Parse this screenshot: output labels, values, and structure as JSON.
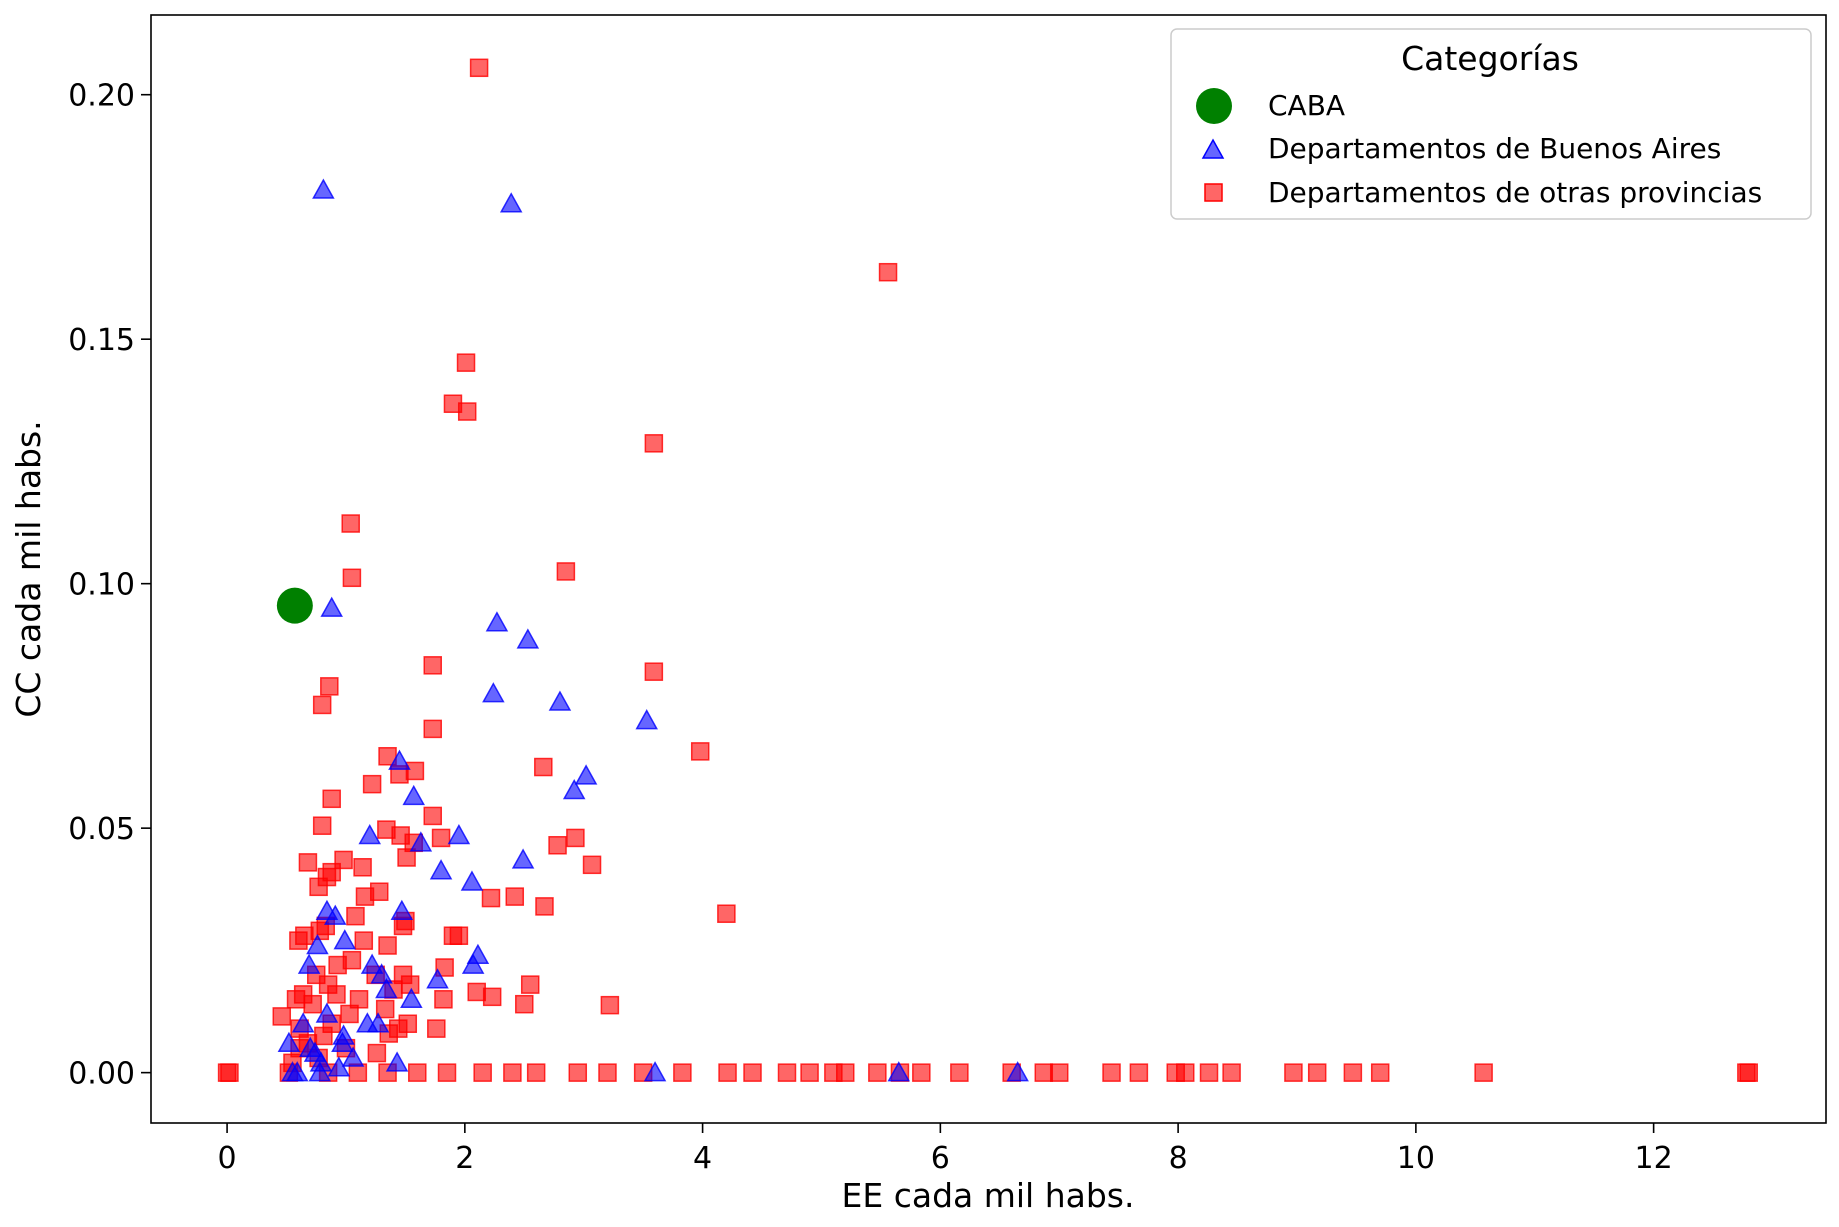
{
  "chart_data": {
    "type": "scatter",
    "xlabel": "EE cada mil habs.",
    "ylabel": "CC cada mil habs.",
    "xlim": [
      -0.64,
      13.45
    ],
    "ylim": [
      -0.0103,
      0.2163
    ],
    "xticks": [
      "0",
      "2",
      "4",
      "6",
      "8",
      "10",
      "12"
    ],
    "xtick_values": [
      0,
      2,
      4,
      6,
      8,
      10,
      12
    ],
    "yticks": [
      "0.00",
      "0.05",
      "0.10",
      "0.15",
      "0.20"
    ],
    "ytick_values": [
      0,
      0.05,
      0.1,
      0.15,
      0.2
    ],
    "grid": false,
    "legend": {
      "title": "Categorías",
      "placement": "top-right"
    },
    "series": [
      {
        "name": "CABA",
        "marker": "circle",
        "color": "#008000",
        "x": [
          0.57
        ],
        "y": [
          0.0955
        ]
      },
      {
        "name": "Departamentos de Buenos Aires",
        "marker": "triangle",
        "color": "#0000ff",
        "x": [
          0.81,
          2.39,
          0.88,
          2.27,
          2.53,
          2.24,
          2.8,
          3.53,
          3.02,
          2.92,
          1.45,
          1.57,
          1.2,
          1.63,
          1.95,
          2.49,
          1.8,
          2.06,
          0.84,
          0.91,
          1.47,
          0.99,
          0.76,
          1.22,
          2.11,
          2.07,
          1.77,
          0.69,
          1.3,
          1.34,
          1.55,
          1.27,
          0.64,
          0.84,
          1.18,
          0.98,
          0.97,
          0.52,
          0.7,
          0.74,
          1.06,
          1.43,
          0.94,
          0.79,
          0.59,
          0.78,
          5.65,
          6.65,
          3.6,
          0.55
        ],
        "y": [
          0.1805,
          0.1777,
          0.095,
          0.092,
          0.0885,
          0.0775,
          0.0758,
          0.072,
          0.0607,
          0.0577,
          0.0637,
          0.0565,
          0.0485,
          0.047,
          0.0485,
          0.0435,
          0.0413,
          0.039,
          0.033,
          0.032,
          0.033,
          0.027,
          0.026,
          0.022,
          0.024,
          0.022,
          0.019,
          0.022,
          0.02,
          0.017,
          0.015,
          0.01,
          0.01,
          0.012,
          0.01,
          0.0075,
          0.006,
          0.006,
          0.005,
          0.004,
          0.003,
          0.002,
          0.001,
          0.002,
          0.0,
          0.0,
          0.0,
          0.0,
          0.0,
          0.0
        ]
      },
      {
        "name": "Departamentos de otras provincias",
        "marker": "square",
        "color": "#ff0000",
        "x": [
          2.12,
          5.56,
          2.01,
          1.9,
          2.02,
          3.59,
          1.04,
          1.05,
          2.85,
          1.73,
          3.59,
          0.86,
          0.8,
          1.73,
          3.98,
          1.35,
          1.45,
          1.58,
          2.66,
          1.22,
          0.88,
          1.73,
          0.8,
          1.46,
          1.34,
          1.57,
          1.8,
          2.93,
          2.78,
          0.68,
          1.51,
          0.98,
          3.07,
          0.88,
          1.14,
          0.84,
          2.22,
          2.42,
          1.28,
          0.77,
          1.16,
          2.67,
          4.2,
          1.08,
          1.5,
          1.35,
          0.83,
          1.48,
          0.6,
          0.78,
          0.65,
          1.9,
          1.95,
          1.05,
          1.15,
          1.83,
          0.93,
          2.1,
          1.48,
          0.75,
          1.25,
          2.55,
          1.54,
          0.85,
          0.92,
          1.4,
          0.64,
          2.23,
          0.58,
          1.82,
          1.11,
          2.5,
          0.72,
          3.22,
          0.46,
          1.33,
          1.03,
          1.52,
          0.88,
          0.61,
          1.76,
          1.44,
          0.81,
          1.36,
          0.68,
          1.0,
          0.61,
          1.26,
          0.77,
          0.55,
          0.52,
          12.8,
          12.78,
          10.57,
          9.7,
          9.47,
          9.17,
          8.97,
          8.45,
          8.26,
          8.06,
          7.98,
          7.67,
          7.44,
          7.0,
          6.87,
          6.6,
          6.16,
          5.84,
          5.66,
          5.47,
          5.2,
          5.1,
          4.9,
          4.71,
          4.42,
          4.21,
          3.83,
          3.5,
          3.2,
          2.95,
          2.6,
          2.4,
          2.15,
          1.85,
          1.6,
          1.35,
          1.1,
          0.85,
          0.0,
          0.02
        ],
        "y": [
          0.2055,
          0.1637,
          0.1452,
          0.1368,
          0.1352,
          0.1287,
          0.1123,
          0.1012,
          0.1025,
          0.0833,
          0.082,
          0.079,
          0.0752,
          0.0703,
          0.0657,
          0.0647,
          0.061,
          0.0617,
          0.0625,
          0.059,
          0.056,
          0.0525,
          0.0505,
          0.0485,
          0.0497,
          0.047,
          0.048,
          0.048,
          0.0465,
          0.043,
          0.044,
          0.0435,
          0.0425,
          0.041,
          0.042,
          0.04,
          0.0357,
          0.036,
          0.037,
          0.038,
          0.036,
          0.034,
          0.0325,
          0.032,
          0.031,
          0.026,
          0.03,
          0.03,
          0.027,
          0.029,
          0.028,
          0.028,
          0.028,
          0.023,
          0.027,
          0.0215,
          0.022,
          0.0165,
          0.02,
          0.02,
          0.02,
          0.018,
          0.018,
          0.018,
          0.016,
          0.017,
          0.016,
          0.0155,
          0.015,
          0.015,
          0.015,
          0.014,
          0.014,
          0.0138,
          0.0115,
          0.013,
          0.012,
          0.01,
          0.01,
          0.009,
          0.009,
          0.009,
          0.0075,
          0.008,
          0.006,
          0.005,
          0.005,
          0.004,
          0.003,
          0.002,
          0.0,
          0.0,
          0.0,
          0.0,
          0.0,
          0.0,
          0.0,
          0.0,
          0.0,
          0.0,
          0.0,
          0.0,
          0.0,
          0.0,
          0.0,
          0.0,
          0.0,
          0.0,
          0.0,
          0.0,
          0.0,
          0.0,
          0.0,
          0.0,
          0.0,
          0.0,
          0.0,
          0.0,
          0.0,
          0.0,
          0.0,
          0.0,
          0.0,
          0.0,
          0.0,
          0.0,
          0.0,
          0.0,
          0.0,
          0.0,
          0.0
        ]
      }
    ]
  },
  "legend_labels": [
    "CABA",
    "Departamentos de Buenos Aires",
    "Departamentos de otras provincias"
  ]
}
